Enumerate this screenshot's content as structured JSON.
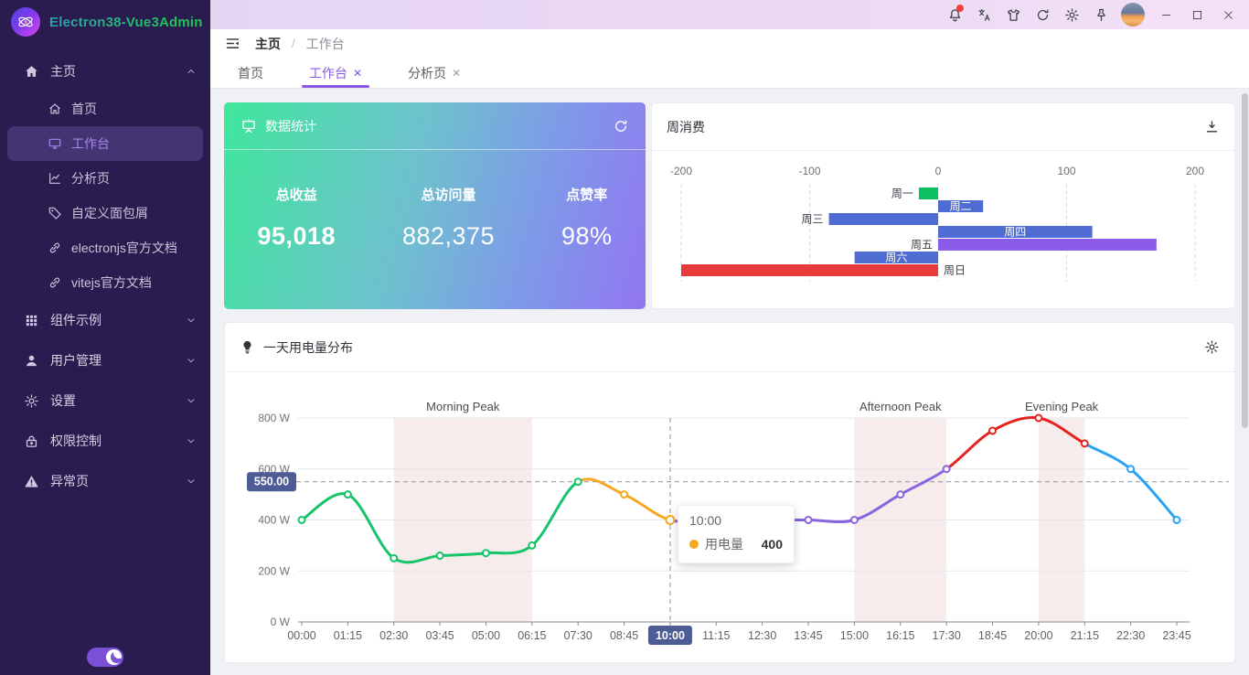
{
  "app_title": "Electron38-Vue3Admin",
  "sidebar": {
    "logo_title": "Electron38-Vue3Admin",
    "menu": [
      {
        "label": "主页",
        "icon": "home-icon",
        "expanded": true,
        "children": [
          {
            "label": "首页",
            "icon": "home-outline-icon",
            "active": false
          },
          {
            "label": "工作台",
            "icon": "monitor-icon",
            "active": true
          },
          {
            "label": "分析页",
            "icon": "analysis-icon",
            "active": false
          },
          {
            "label": "自定义面包屑",
            "icon": "tag-icon",
            "active": false
          },
          {
            "label": "electronjs官方文档",
            "icon": "link-icon",
            "active": false
          },
          {
            "label": "vitejs官方文档",
            "icon": "link-icon",
            "active": false
          }
        ]
      },
      {
        "label": "组件示例",
        "icon": "grid-icon",
        "expanded": false
      },
      {
        "label": "用户管理",
        "icon": "user-icon",
        "expanded": false
      },
      {
        "label": "设置",
        "icon": "gear-icon",
        "expanded": false
      },
      {
        "label": "权限控制",
        "icon": "lock-icon",
        "expanded": false
      },
      {
        "label": "异常页",
        "icon": "warning-icon",
        "expanded": false
      }
    ],
    "dark_mode_on": true
  },
  "titlebar": {
    "icons": [
      {
        "name": "bell-icon",
        "badge": true
      },
      {
        "name": "language-icon",
        "badge": false
      },
      {
        "name": "theme-skin-icon",
        "badge": false
      },
      {
        "name": "refresh-icon",
        "badge": false
      },
      {
        "name": "settings-icon",
        "badge": false
      },
      {
        "name": "pin-icon",
        "badge": false
      }
    ],
    "window_controls": [
      "minimize",
      "maximize",
      "close"
    ]
  },
  "breadcrumb": {
    "items": [
      "主页",
      "工作台"
    ],
    "separator": "/"
  },
  "tabs": [
    {
      "label": "首页",
      "closable": false,
      "active": false
    },
    {
      "label": "工作台",
      "closable": true,
      "active": true
    },
    {
      "label": "分析页",
      "closable": true,
      "active": false
    }
  ],
  "stats_card": {
    "title": "数据统计",
    "title_icon": "presentation-board-icon",
    "action_icon": "refresh-icon",
    "items": [
      {
        "label": "总收益",
        "value": "95,018",
        "heavy": true
      },
      {
        "label": "总访问量",
        "value": "882,375",
        "heavy": false
      },
      {
        "label": "点赞率",
        "value": "98%",
        "heavy": false
      }
    ],
    "gradient": [
      "#40e69c",
      "#9276f1"
    ]
  },
  "chart_data": [
    {
      "type": "bar",
      "orientation": "horizontal",
      "title": "周消费",
      "action_icon": "download-icon",
      "categories": [
        "周一",
        "周二",
        "周三",
        "周四",
        "周五",
        "周六",
        "周日"
      ],
      "values": [
        -15,
        35,
        -85,
        120,
        170,
        -65,
        -200
      ],
      "colors": [
        "#0bc15f",
        "#4f6cd3",
        "#4f6cd3",
        "#4f6cd3",
        "#8a5ce8",
        "#4f6cd3",
        "#e93b3b"
      ],
      "label_positions": [
        "bar-left",
        "inside",
        "bar-left",
        "inside",
        "axis-left",
        "inside",
        "axis-right"
      ],
      "xlim": [
        -200,
        200
      ],
      "x_ticks": [
        -200,
        -100,
        0,
        100,
        200
      ],
      "tick_position": "top",
      "grid": "dashed-vertical"
    },
    {
      "type": "line",
      "title": "一天用电量分布",
      "title_icon": "bulb-icon",
      "action_icon": "gear-icon",
      "x": [
        "00:00",
        "01:15",
        "02:30",
        "03:45",
        "05:00",
        "06:15",
        "07:30",
        "08:45",
        "10:00",
        "11:15",
        "12:30",
        "13:45",
        "15:00",
        "16:15",
        "17:30",
        "18:45",
        "20:00",
        "21:15",
        "22:30",
        "23:45"
      ],
      "series": [
        {
          "name": "用电量",
          "values": [
            400,
            500,
            250,
            260,
            270,
            300,
            550,
            500,
            400,
            400,
            400,
            400,
            400,
            500,
            600,
            750,
            800,
            700,
            600,
            400
          ]
        }
      ],
      "segments": [
        {
          "color": "#16c46a",
          "from": 0,
          "to": 6
        },
        {
          "color": "#f6a821",
          "from": 6,
          "to": 8
        },
        {
          "color": "#8a63e0",
          "from": 8,
          "to": 14
        },
        {
          "color": "#e6221f",
          "from": 14,
          "to": 17
        },
        {
          "color": "#2aa1f5",
          "from": 17,
          "to": 19
        }
      ],
      "ylim": [
        0,
        800
      ],
      "y_ticks": [
        0,
        200,
        400,
        600,
        800
      ],
      "y_suffix": " W",
      "grid": "horizontal",
      "mark_areas": [
        {
          "label": "Morning Peak",
          "from": "02:30",
          "to": "06:15"
        },
        {
          "label": "Afternoon Peak",
          "from": "15:00",
          "to": "17:30"
        },
        {
          "label": "Evening Peak",
          "from": "20:00",
          "to": "21:15"
        }
      ],
      "mark_area_color": "#f6ecec",
      "axis_pointer": {
        "x_label": "10:00",
        "y_label": "550.00",
        "y_value": 550,
        "badge_color": "#4e5c96"
      },
      "tooltip": {
        "title": "10:00",
        "series_name": "用电量",
        "value": "400",
        "dot_color": "#f6a821"
      }
    }
  ]
}
